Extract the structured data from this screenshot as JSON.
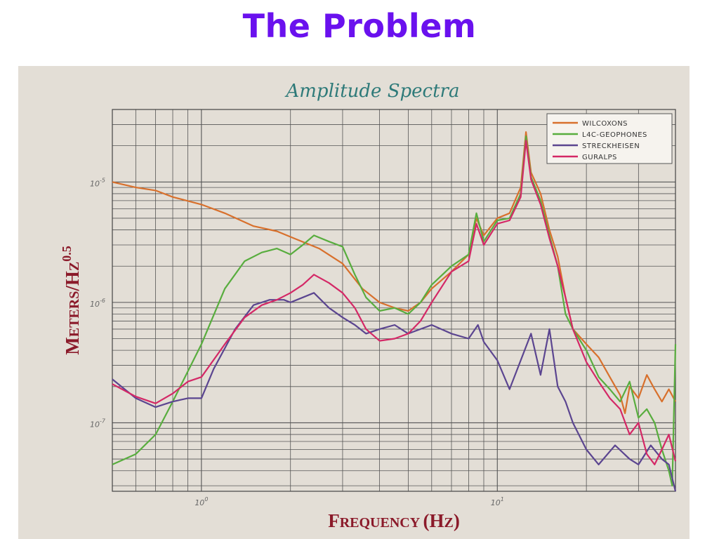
{
  "slide": {
    "title": "The Problem"
  },
  "chart_data": {
    "type": "line",
    "title": "Amplitude Spectra",
    "xlabel": "Frequency (Hz)",
    "ylabel": "Meters/Hz^0.5",
    "xscale": "log",
    "yscale": "log",
    "xlim": [
      0.5,
      40
    ],
    "ylim": [
      2.7e-08,
      4e-05
    ],
    "x_ticks": [
      {
        "value": 1,
        "base": "10",
        "exp": "0"
      },
      {
        "value": 10,
        "base": "10",
        "exp": "1"
      }
    ],
    "y_ticks": [
      {
        "value": 1e-05,
        "base": "10",
        "exp": "-5"
      },
      {
        "value": 1e-06,
        "base": "10",
        "exp": "-6"
      },
      {
        "value": 1e-07,
        "base": "10",
        "exp": "-7"
      }
    ],
    "grid": true,
    "legend_position": "top-right",
    "series": [
      {
        "name": "WILCOXONS",
        "color": "#d8702c",
        "points": [
          [
            0.5,
            1e-05
          ],
          [
            0.6,
            9e-06
          ],
          [
            0.7,
            8.5e-06
          ],
          [
            0.8,
            7.5e-06
          ],
          [
            1,
            6.5e-06
          ],
          [
            1.2,
            5.5e-06
          ],
          [
            1.5,
            4.3e-06
          ],
          [
            1.8,
            3.9e-06
          ],
          [
            2,
            3.5e-06
          ],
          [
            2.5,
            2.8e-06
          ],
          [
            3,
            2.1e-06
          ],
          [
            3.5,
            1.3e-06
          ],
          [
            4,
            1e-06
          ],
          [
            4.5,
            9e-07
          ],
          [
            5,
            8.5e-07
          ],
          [
            5.5,
            1e-06
          ],
          [
            6,
            1.3e-06
          ],
          [
            7,
            1.8e-06
          ],
          [
            8,
            2.5e-06
          ],
          [
            8.5,
            5e-06
          ],
          [
            9,
            3.6e-06
          ],
          [
            10,
            5e-06
          ],
          [
            11,
            5.5e-06
          ],
          [
            12,
            9e-06
          ],
          [
            12.5,
            2.6e-05
          ],
          [
            13,
            1.2e-05
          ],
          [
            14,
            8e-06
          ],
          [
            15,
            4e-06
          ],
          [
            16,
            2.4e-06
          ],
          [
            17,
            1.1e-06
          ],
          [
            18,
            6e-07
          ],
          [
            20,
            4.5e-07
          ],
          [
            22,
            3.5e-07
          ],
          [
            24,
            2.4e-07
          ],
          [
            26,
            1.7e-07
          ],
          [
            27,
            1.2e-07
          ],
          [
            28,
            2e-07
          ],
          [
            30,
            1.6e-07
          ],
          [
            32,
            2.5e-07
          ],
          [
            34,
            1.9e-07
          ],
          [
            36,
            1.5e-07
          ],
          [
            38,
            1.9e-07
          ],
          [
            40,
            1.5e-07
          ]
        ]
      },
      {
        "name": "L4C-GEOPHONES",
        "color": "#58ad3e",
        "points": [
          [
            0.5,
            4.5e-08
          ],
          [
            0.6,
            5.5e-08
          ],
          [
            0.7,
            8e-08
          ],
          [
            0.8,
            1.5e-07
          ],
          [
            1,
            4.5e-07
          ],
          [
            1.2,
            1.3e-06
          ],
          [
            1.4,
            2.2e-06
          ],
          [
            1.6,
            2.6e-06
          ],
          [
            1.8,
            2.8e-06
          ],
          [
            2,
            2.5e-06
          ],
          [
            2.2,
            3e-06
          ],
          [
            2.4,
            3.6e-06
          ],
          [
            2.7,
            3.2e-06
          ],
          [
            3,
            2.9e-06
          ],
          [
            3.3,
            1.7e-06
          ],
          [
            3.6,
            1.1e-06
          ],
          [
            4,
            8.5e-07
          ],
          [
            4.5,
            9e-07
          ],
          [
            5,
            8e-07
          ],
          [
            5.5,
            1e-06
          ],
          [
            6,
            1.4e-06
          ],
          [
            7,
            2e-06
          ],
          [
            8,
            2.5e-06
          ],
          [
            8.5,
            5.5e-06
          ],
          [
            9,
            3.2e-06
          ],
          [
            10,
            4.8e-06
          ],
          [
            11,
            5e-06
          ],
          [
            12,
            8e-06
          ],
          [
            12.5,
            2.4e-05
          ],
          [
            13,
            1.1e-05
          ],
          [
            14,
            7e-06
          ],
          [
            15,
            3.6e-06
          ],
          [
            16,
            2e-06
          ],
          [
            17,
            8e-07
          ],
          [
            18,
            6e-07
          ],
          [
            20,
            4e-07
          ],
          [
            22,
            2.4e-07
          ],
          [
            24,
            1.9e-07
          ],
          [
            26,
            1.5e-07
          ],
          [
            28,
            2.2e-07
          ],
          [
            30,
            1.1e-07
          ],
          [
            32,
            1.3e-07
          ],
          [
            34,
            1e-07
          ],
          [
            36,
            6e-08
          ],
          [
            38,
            4e-08
          ],
          [
            39,
            3e-08
          ],
          [
            40,
            4.5e-07
          ]
        ]
      },
      {
        "name": "STRECKHEISEN",
        "color": "#5b4590",
        "points": [
          [
            0.5,
            2.3e-07
          ],
          [
            0.6,
            1.6e-07
          ],
          [
            0.7,
            1.35e-07
          ],
          [
            0.8,
            1.5e-07
          ],
          [
            0.9,
            1.6e-07
          ],
          [
            1,
            1.6e-07
          ],
          [
            1.1,
            2.8e-07
          ],
          [
            1.3,
            6e-07
          ],
          [
            1.5,
            9.5e-07
          ],
          [
            1.7,
            1.05e-06
          ],
          [
            1.9,
            1.05e-06
          ],
          [
            2,
            1e-06
          ],
          [
            2.2,
            1.1e-06
          ],
          [
            2.4,
            1.2e-06
          ],
          [
            2.7,
            9e-07
          ],
          [
            3,
            7.5e-07
          ],
          [
            3.3,
            6.5e-07
          ],
          [
            3.6,
            5.5e-07
          ],
          [
            4,
            6e-07
          ],
          [
            4.5,
            6.5e-07
          ],
          [
            5,
            5.5e-07
          ],
          [
            6,
            6.5e-07
          ],
          [
            7,
            5.5e-07
          ],
          [
            8,
            5e-07
          ],
          [
            8.6,
            6.5e-07
          ],
          [
            9,
            4.7e-07
          ],
          [
            10,
            3.3e-07
          ],
          [
            11,
            1.9e-07
          ],
          [
            12,
            3.3e-07
          ],
          [
            13,
            5.5e-07
          ],
          [
            14,
            2.5e-07
          ],
          [
            15,
            6e-07
          ],
          [
            16,
            2e-07
          ],
          [
            17,
            1.5e-07
          ],
          [
            18,
            1e-07
          ],
          [
            20,
            6e-08
          ],
          [
            22,
            4.5e-08
          ],
          [
            25,
            6.5e-08
          ],
          [
            28,
            5e-08
          ],
          [
            30,
            4.5e-08
          ],
          [
            33,
            6.5e-08
          ],
          [
            36,
            5e-08
          ],
          [
            38,
            4.5e-08
          ],
          [
            40,
            2.7e-08
          ]
        ]
      },
      {
        "name": "GURALPS",
        "color": "#d42866",
        "points": [
          [
            0.5,
            2.1e-07
          ],
          [
            0.6,
            1.65e-07
          ],
          [
            0.7,
            1.45e-07
          ],
          [
            0.8,
            1.75e-07
          ],
          [
            0.9,
            2.2e-07
          ],
          [
            1,
            2.4e-07
          ],
          [
            1.2,
            4.5e-07
          ],
          [
            1.4,
            7.5e-07
          ],
          [
            1.6,
            9.5e-07
          ],
          [
            1.8,
            1.05e-06
          ],
          [
            2,
            1.2e-06
          ],
          [
            2.2,
            1.4e-06
          ],
          [
            2.4,
            1.7e-06
          ],
          [
            2.7,
            1.45e-06
          ],
          [
            3,
            1.2e-06
          ],
          [
            3.3,
            9e-07
          ],
          [
            3.6,
            6e-07
          ],
          [
            4,
            4.8e-07
          ],
          [
            4.5,
            5e-07
          ],
          [
            5,
            5.5e-07
          ],
          [
            5.5,
            7e-07
          ],
          [
            6,
            1e-06
          ],
          [
            7,
            1.8e-06
          ],
          [
            8,
            2.2e-06
          ],
          [
            8.5,
            4.5e-06
          ],
          [
            9,
            3e-06
          ],
          [
            10,
            4.5e-06
          ],
          [
            11,
            4.8e-06
          ],
          [
            12,
            7.5e-06
          ],
          [
            12.5,
            2.2e-05
          ],
          [
            13,
            1.05e-05
          ],
          [
            14,
            6.5e-06
          ],
          [
            15,
            3.4e-06
          ],
          [
            16,
            2e-06
          ],
          [
            17,
            1.1e-06
          ],
          [
            18,
            6e-07
          ],
          [
            20,
            3.2e-07
          ],
          [
            22,
            2.2e-07
          ],
          [
            24,
            1.6e-07
          ],
          [
            26,
            1.3e-07
          ],
          [
            28,
            8e-08
          ],
          [
            30,
            1e-07
          ],
          [
            32,
            5.5e-08
          ],
          [
            34,
            4.5e-08
          ],
          [
            36,
            6e-08
          ],
          [
            38,
            8e-08
          ],
          [
            40,
            4.8e-08
          ]
        ]
      }
    ]
  }
}
